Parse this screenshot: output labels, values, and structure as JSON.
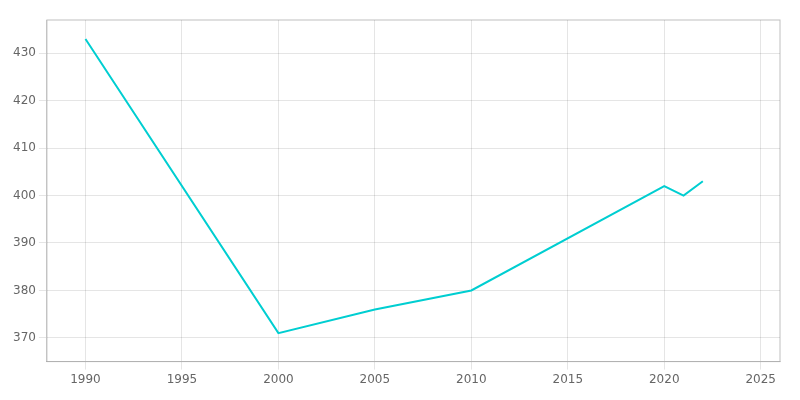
{
  "chart_data": {
    "type": "line",
    "x": [
      1990,
      2000,
      2005,
      2010,
      2020,
      2021,
      2022
    ],
    "values": [
      433,
      371,
      376,
      380,
      402,
      400,
      403
    ],
    "color": "#00CED1",
    "xlim": [
      1988,
      2026
    ],
    "xticks": [
      1990,
      1995,
      2000,
      2005,
      2010,
      2015,
      2020,
      2025
    ],
    "ylim": [
      365,
      437
    ],
    "yticks": [
      370,
      380,
      390,
      400,
      410,
      420,
      430
    ],
    "grid": true
  }
}
